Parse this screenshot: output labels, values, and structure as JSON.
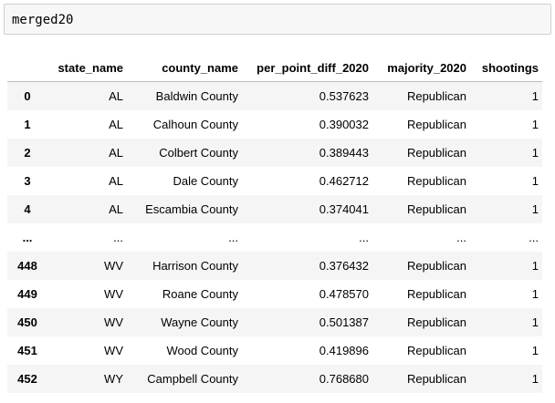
{
  "cell": {
    "code": "merged20"
  },
  "table": {
    "columns": [
      "",
      "state_name",
      "county_name",
      "per_point_diff_2020",
      "majority_2020",
      "shootings"
    ],
    "rows": [
      {
        "index": "0",
        "state_name": "AL",
        "county_name": "Baldwin County",
        "per_point_diff_2020": "0.537623",
        "majority_2020": "Republican",
        "shootings": "1"
      },
      {
        "index": "1",
        "state_name": "AL",
        "county_name": "Calhoun County",
        "per_point_diff_2020": "0.390032",
        "majority_2020": "Republican",
        "shootings": "1"
      },
      {
        "index": "2",
        "state_name": "AL",
        "county_name": "Colbert County",
        "per_point_diff_2020": "0.389443",
        "majority_2020": "Republican",
        "shootings": "1"
      },
      {
        "index": "3",
        "state_name": "AL",
        "county_name": "Dale County",
        "per_point_diff_2020": "0.462712",
        "majority_2020": "Republican",
        "shootings": "1"
      },
      {
        "index": "4",
        "state_name": "AL",
        "county_name": "Escambia County",
        "per_point_diff_2020": "0.374041",
        "majority_2020": "Republican",
        "shootings": "1"
      },
      {
        "index": "...",
        "state_name": "...",
        "county_name": "...",
        "per_point_diff_2020": "...",
        "majority_2020": "...",
        "shootings": "..."
      },
      {
        "index": "448",
        "state_name": "WV",
        "county_name": "Harrison County",
        "per_point_diff_2020": "0.376432",
        "majority_2020": "Republican",
        "shootings": "1"
      },
      {
        "index": "449",
        "state_name": "WV",
        "county_name": "Roane County",
        "per_point_diff_2020": "0.478570",
        "majority_2020": "Republican",
        "shootings": "1"
      },
      {
        "index": "450",
        "state_name": "WV",
        "county_name": "Wayne County",
        "per_point_diff_2020": "0.501387",
        "majority_2020": "Republican",
        "shootings": "1"
      },
      {
        "index": "451",
        "state_name": "WV",
        "county_name": "Wood County",
        "per_point_diff_2020": "0.419896",
        "majority_2020": "Republican",
        "shootings": "1"
      },
      {
        "index": "452",
        "state_name": "WY",
        "county_name": "Campbell County",
        "per_point_diff_2020": "0.768680",
        "majority_2020": "Republican",
        "shootings": "1"
      }
    ]
  }
}
